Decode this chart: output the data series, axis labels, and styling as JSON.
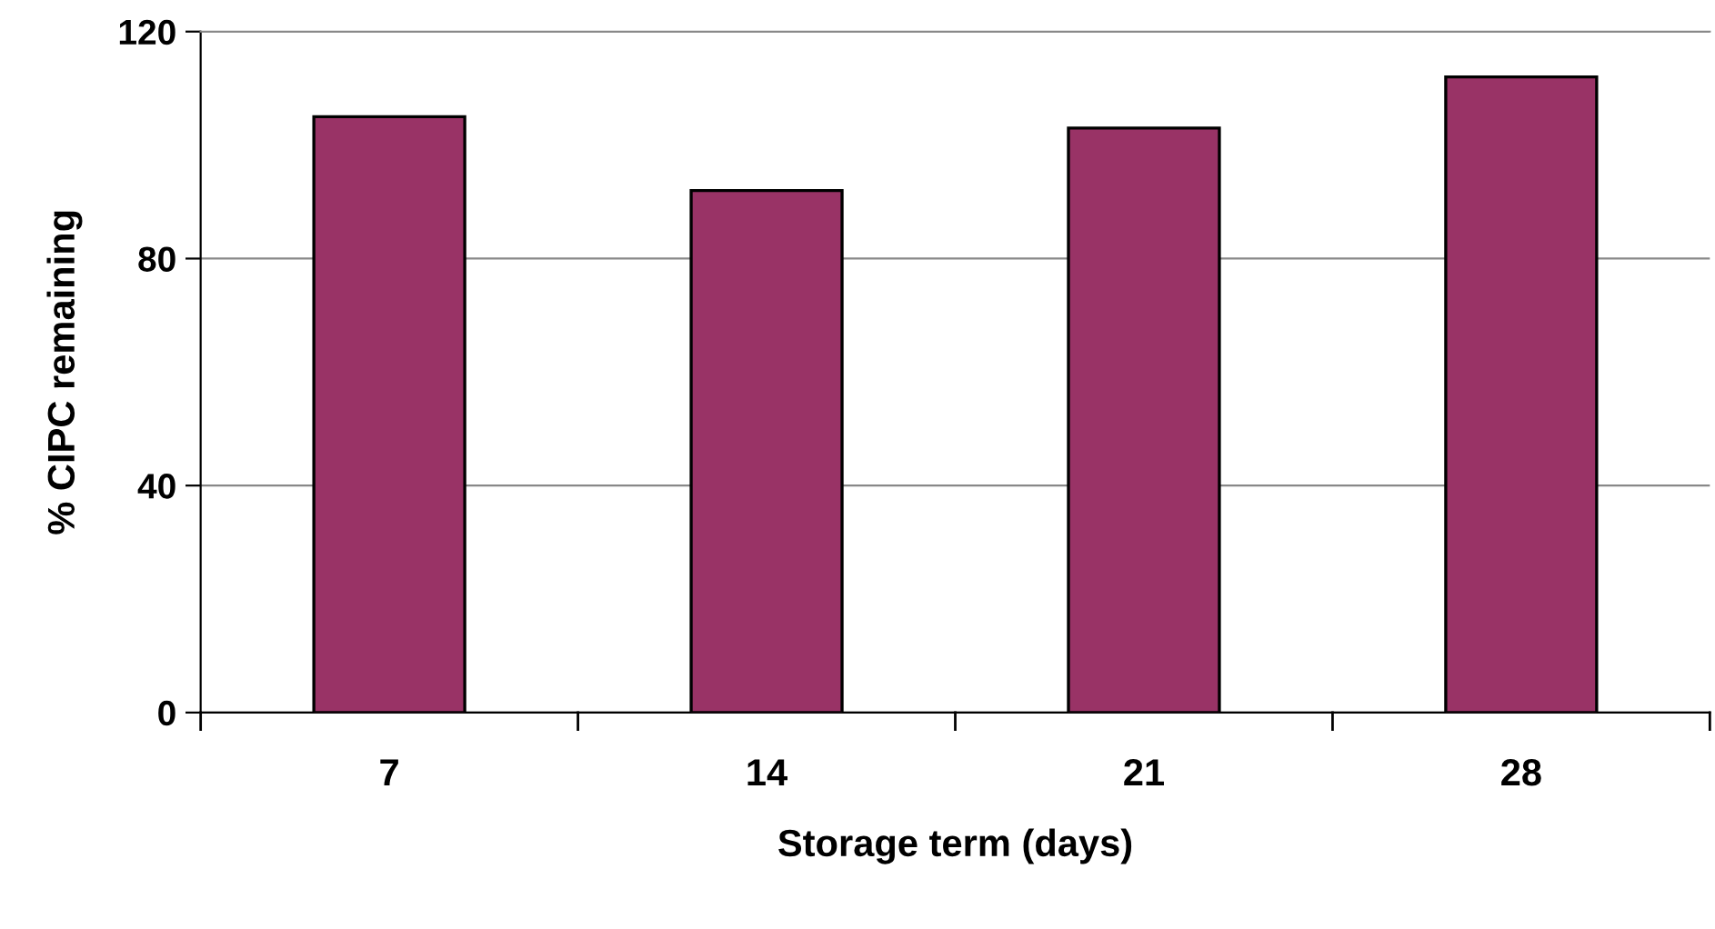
{
  "chart_data": {
    "type": "bar",
    "categories": [
      "7",
      "14",
      "21",
      "28"
    ],
    "values": [
      105,
      92,
      103,
      112
    ],
    "color": "#993366",
    "xlabel": "Storage term (days)",
    "ylabel": "% CIPC remaining",
    "ylim": [
      0,
      120
    ],
    "yticks": [
      0,
      40,
      80,
      120
    ],
    "grid": "y",
    "legend": false
  }
}
